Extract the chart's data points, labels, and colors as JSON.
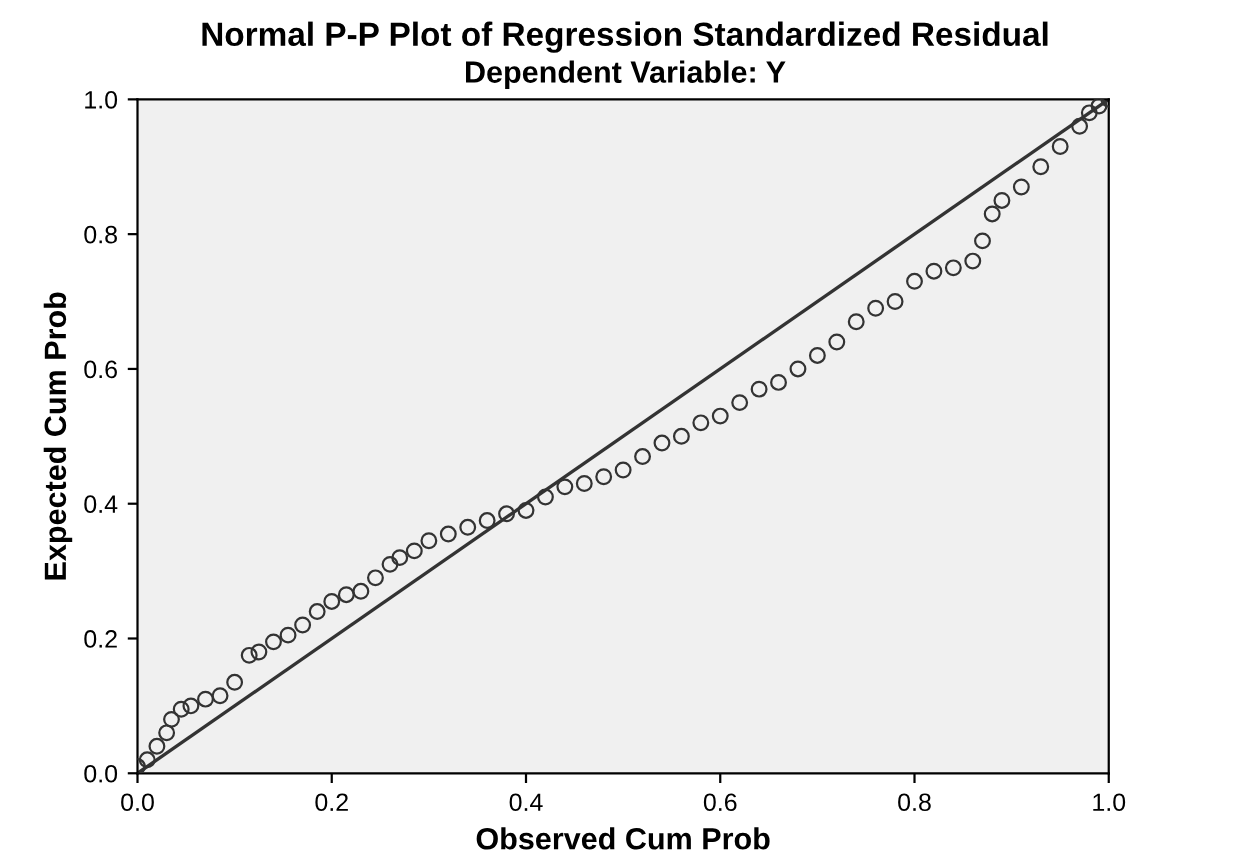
{
  "chart_data": {
    "type": "scatter",
    "title": "Normal P-P Plot of Regression Standardized Residual",
    "subtitle": "Dependent Variable: Y",
    "xlabel": "Observed Cum Prob",
    "ylabel": "Expected Cum Prob",
    "xlim": [
      0,
      1
    ],
    "ylim": [
      0,
      1
    ],
    "xticks": [
      {
        "value": 0,
        "label": "0.0"
      },
      0.2,
      0.4,
      0.6,
      0.8,
      {
        "value": 1,
        "label": "1.0"
      }
    ],
    "yticks": [
      {
        "value": 0,
        "label": "0.0"
      },
      0.2,
      0.4,
      0.6,
      0.8,
      {
        "value": 1,
        "label": "1.0"
      }
    ],
    "grid": false,
    "legend": false,
    "series": [
      {
        "marker": "circle",
        "color": "#333333",
        "x": [
          0.0,
          0.01,
          0.02,
          0.03,
          0.035,
          0.045,
          0.055,
          0.07,
          0.085,
          0.1,
          0.115,
          0.125,
          0.14,
          0.155,
          0.17,
          0.185,
          0.2,
          0.215,
          0.23,
          0.245,
          0.26,
          0.27,
          0.285,
          0.3,
          0.32,
          0.34,
          0.36,
          0.38,
          0.4,
          0.42,
          0.44,
          0.46,
          0.48,
          0.5,
          0.52,
          0.54,
          0.56,
          0.58,
          0.6,
          0.62,
          0.64,
          0.66,
          0.68,
          0.7,
          0.72,
          0.74,
          0.76,
          0.78,
          0.8,
          0.82,
          0.84,
          0.86,
          0.87,
          0.88,
          0.89,
          0.91,
          0.93,
          0.95,
          0.97,
          0.98,
          0.99,
          1.0
        ],
        "values": [
          0.01,
          0.02,
          0.04,
          0.06,
          0.08,
          0.095,
          0.1,
          0.11,
          0.115,
          0.135,
          0.175,
          0.18,
          0.195,
          0.205,
          0.22,
          0.24,
          0.255,
          0.265,
          0.27,
          0.29,
          0.31,
          0.32,
          0.33,
          0.345,
          0.355,
          0.365,
          0.375,
          0.385,
          0.39,
          0.41,
          0.425,
          0.43,
          0.44,
          0.45,
          0.47,
          0.49,
          0.5,
          0.52,
          0.53,
          0.55,
          0.57,
          0.58,
          0.6,
          0.62,
          0.64,
          0.67,
          0.69,
          0.7,
          0.73,
          0.745,
          0.75,
          0.76,
          0.79,
          0.83,
          0.85,
          0.87,
          0.9,
          0.93,
          0.96,
          0.98,
          0.99,
          1.0
        ]
      },
      {
        "type": "line",
        "marker": "none",
        "color": "#333333",
        "x": [
          0,
          1
        ],
        "values": [
          0,
          1
        ]
      }
    ]
  }
}
